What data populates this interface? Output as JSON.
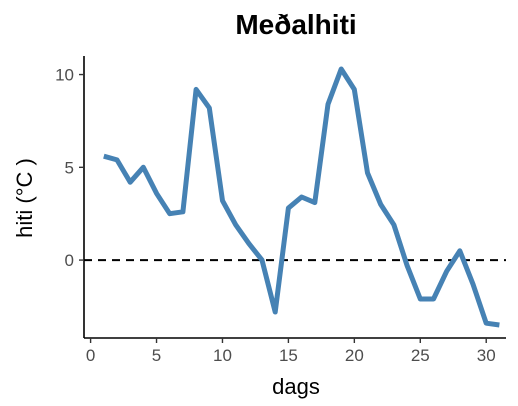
{
  "chart_data": {
    "type": "line",
    "title": "Meðalhiti",
    "xlabel": "dags",
    "ylabel": "hiti (°C )",
    "xlim": [
      -0.5,
      31.5
    ],
    "ylim": [
      -4.2,
      11.0
    ],
    "xticks": [
      0,
      5,
      10,
      15,
      20,
      25,
      30
    ],
    "yticks": [
      0,
      5,
      10
    ],
    "grid": false,
    "legend": "none",
    "reference_line": {
      "y": 0,
      "style": "dashed"
    },
    "series": [
      {
        "color": "#4682B4",
        "x": [
          1,
          2,
          3,
          4,
          5,
          6,
          7,
          8,
          9,
          10,
          11,
          12,
          13,
          14,
          15,
          16,
          17,
          18,
          19,
          20,
          21,
          22,
          23,
          24,
          25,
          26,
          27,
          28,
          29,
          30,
          31
        ],
        "y": [
          5.6,
          5.4,
          4.2,
          5.0,
          3.6,
          2.5,
          2.6,
          9.2,
          8.2,
          3.2,
          1.9,
          0.9,
          0.0,
          -2.8,
          2.8,
          3.4,
          3.1,
          8.4,
          10.3,
          9.2,
          4.7,
          3.0,
          1.9,
          -0.3,
          -2.1,
          -2.1,
          -0.6,
          0.5,
          -1.3,
          -3.4,
          -3.5
        ]
      }
    ]
  }
}
